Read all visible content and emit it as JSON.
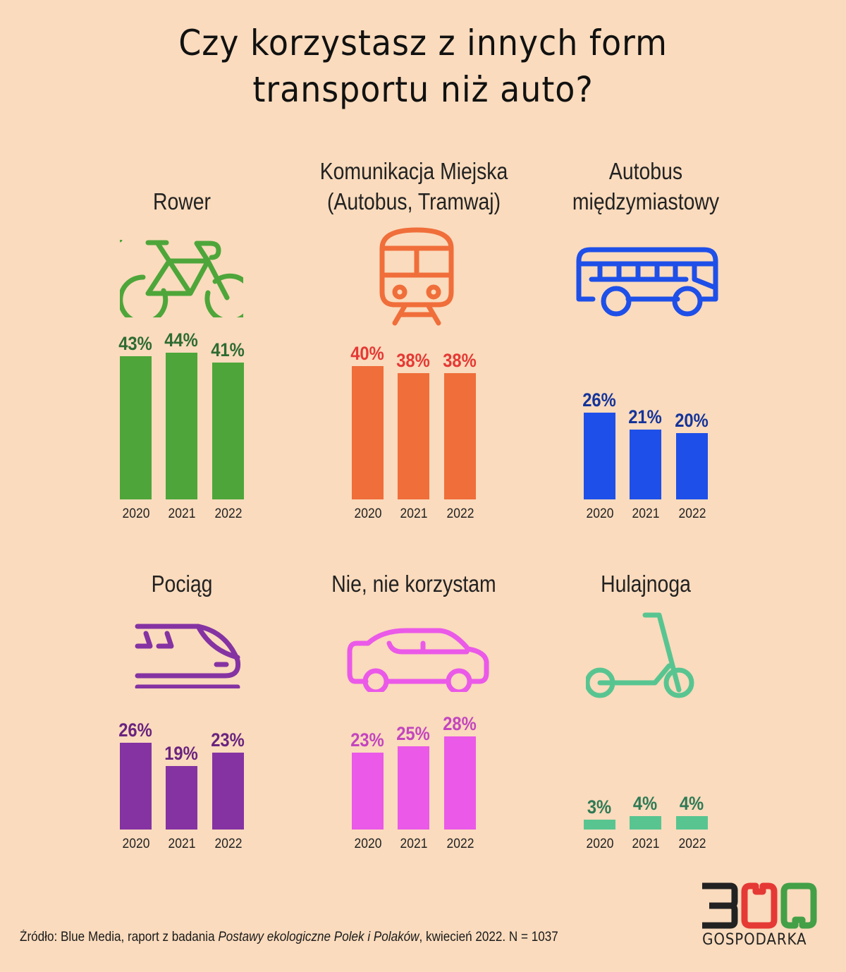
{
  "title": {
    "line1": "Czy korzystasz z innych form",
    "line2": "transportu niż auto?"
  },
  "panels": [
    {
      "id": "rower",
      "title_lines": [
        "Rower",
        ""
      ],
      "icon": "bicycle-icon",
      "color": "#4EA63A",
      "label_color": "#2E6B33",
      "years": [
        "2020",
        "2021",
        "2022"
      ],
      "values": [
        "43%",
        "44%",
        "41%"
      ]
    },
    {
      "id": "komunikacja",
      "title_lines": [
        "Komunikacja Miejska",
        "(Autobus, Tramwaj)"
      ],
      "icon": "tram-icon",
      "color": "#F06E3A",
      "label_color": "#E53935",
      "years": [
        "2020",
        "2021",
        "2022"
      ],
      "values": [
        "40%",
        "38%",
        "38%"
      ]
    },
    {
      "id": "autobus",
      "title_lines": [
        "Autobus",
        "międzymiastowy"
      ],
      "icon": "bus-icon",
      "color": "#1E4FE8",
      "label_color": "#15349A",
      "years": [
        "2020",
        "2021",
        "2022"
      ],
      "values": [
        "26%",
        "21%",
        "20%"
      ]
    },
    {
      "id": "pociag",
      "title_lines": [
        "Pociąg",
        ""
      ],
      "icon": "train-icon",
      "color": "#8533A2",
      "label_color": "#6A237F",
      "years": [
        "2020",
        "2021",
        "2022"
      ],
      "values": [
        "26%",
        "19%",
        "23%"
      ]
    },
    {
      "id": "nie",
      "title_lines": [
        "Nie, nie korzystam",
        ""
      ],
      "icon": "car-icon",
      "color": "#EA59E8",
      "label_color": "#C445BE",
      "years": [
        "2020",
        "2021",
        "2022"
      ],
      "values": [
        "23%",
        "25%",
        "28%"
      ]
    },
    {
      "id": "hulajnoga",
      "title_lines": [
        "Hulajnoga",
        ""
      ],
      "icon": "scooter-icon",
      "color": "#58C591",
      "label_color": "#2F7A55",
      "years": [
        "2020",
        "2021",
        "2022"
      ],
      "values": [
        "3%",
        "4%",
        "4%"
      ]
    }
  ],
  "footer": {
    "source_prefix": "Źródło: Blue Media, raport z badania ",
    "source_italic": "Postawy ekologiczne Polek i Polaków",
    "source_suffix": ", kwiecień 2022. N = 1037",
    "logo_number": "300",
    "logo_text": "GOSPODARKA",
    "logo_colors": [
      "#222222",
      "#E53935",
      "#43A047"
    ]
  },
  "chart_data": [
    {
      "type": "bar",
      "title": "Rower",
      "categories": [
        "2020",
        "2021",
        "2022"
      ],
      "values": [
        43,
        44,
        41
      ],
      "xlabel": "",
      "ylabel": "%",
      "ylim": [
        0,
        50
      ],
      "grid": false
    },
    {
      "type": "bar",
      "title": "Komunikacja Miejska (Autobus, Tramwaj)",
      "categories": [
        "2020",
        "2021",
        "2022"
      ],
      "values": [
        40,
        38,
        38
      ],
      "xlabel": "",
      "ylabel": "%",
      "ylim": [
        0,
        50
      ],
      "grid": false
    },
    {
      "type": "bar",
      "title": "Autobus międzymiastowy",
      "categories": [
        "2020",
        "2021",
        "2022"
      ],
      "values": [
        26,
        21,
        20
      ],
      "xlabel": "",
      "ylabel": "%",
      "ylim": [
        0,
        50
      ],
      "grid": false
    },
    {
      "type": "bar",
      "title": "Pociąg",
      "categories": [
        "2020",
        "2021",
        "2022"
      ],
      "values": [
        26,
        19,
        23
      ],
      "xlabel": "",
      "ylabel": "%",
      "ylim": [
        0,
        50
      ],
      "grid": false
    },
    {
      "type": "bar",
      "title": "Nie, nie korzystam",
      "categories": [
        "2020",
        "2021",
        "2022"
      ],
      "values": [
        23,
        25,
        28
      ],
      "xlabel": "",
      "ylabel": "%",
      "ylim": [
        0,
        50
      ],
      "grid": false
    },
    {
      "type": "bar",
      "title": "Hulajnoga",
      "categories": [
        "2020",
        "2021",
        "2022"
      ],
      "values": [
        3,
        4,
        4
      ],
      "xlabel": "",
      "ylabel": "%",
      "ylim": [
        0,
        50
      ],
      "grid": false
    }
  ]
}
